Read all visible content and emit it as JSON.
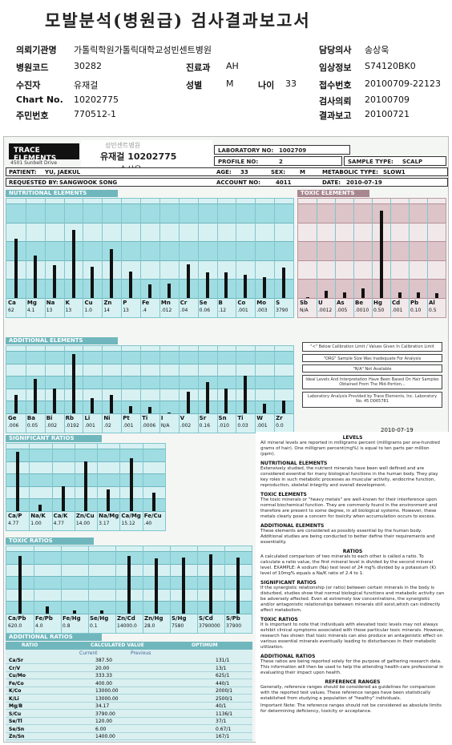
{
  "report_title": "모발분석(병원급) 검사결과보고서",
  "info": {
    "inst_label": "의뢰기관명",
    "inst": "가톨릭학원가톨릭대학교성빈센트병원",
    "doctor_label": "담당의사",
    "doctor": "송상욱",
    "code_label": "병원코드",
    "code": "30282",
    "dept_label": "진료과",
    "dept": "AH",
    "clinic_label": "임상정보",
    "clinic": "S74120BK0",
    "name_label": "수진자",
    "name": "유재걸",
    "sex_label": "성별",
    "sex": "M",
    "age_label": "나이",
    "age": "33",
    "rcpt_label": "접수번호",
    "rcpt": "20100709-22123",
    "chart_label": "Chart No.",
    "chart": "10202775",
    "req_label": "검사의뢰",
    "req": "20100709",
    "ssn_label": "주민번호",
    "ssn": "770512-1",
    "result_label": "결과보고",
    "result": "20100721"
  },
  "sheet": {
    "company": "TRACE ELEMENTS",
    "address": "4501 Sunbelt Drive",
    "stamp_top": "성빈센트병원",
    "stamp_name": "유재걸 10202775",
    "stamp_doc": "송상욱",
    "lab_no_label": "LABORATORY NO:",
    "lab_no": "1002709",
    "profile_label": "PROFILE NO:",
    "profile": "2",
    "sample_label": "SAMPLE TYPE:",
    "sample": "SCALP",
    "patient_label": "PATIENT:",
    "patient": "YU, JAEKUL",
    "age_label": "AGE:",
    "age": "33",
    "sex_label": "SEX:",
    "sex": "M",
    "meta_label": "METABOLIC TYPE:",
    "meta": "SLOW1",
    "req_label": "REQUESTED BY:",
    "req": "SANGWOOK SONG",
    "acct_label": "ACCOUNT NO:",
    "acct": "4011",
    "date_label": "DATE:",
    "date": "2010-07-19",
    "sec_nutri": "NUTRITIONAL ELEMENTS",
    "sec_toxic": "TOXIC ELEMENTS",
    "sec_add": "ADDITIONAL ELEMENTS",
    "sec_sig": "SIGNIFICANT RATIOS",
    "sec_toxr": "TOXIC RATIOS",
    "sec_addr": "ADDITIONAL RATIOS",
    "key1": "\"<\" Below Calibration Limit / Values Given In Calibration Limit",
    "key2": "\"ORG\" Sample Size Was Inadequate For Analysis",
    "key3": "\"N/A\" Not Available",
    "key4": "Ideal Levels And Interpretation Have Been Based On Hair Samples Obtained From The Mid-Portion...",
    "key5": "Laboratory Analysis Provided by Trace Elements, Inc. Laboratory No. 45 D065781",
    "date2": "2010-07-19"
  },
  "nutritional": {
    "labels": [
      "Ca",
      "Mg",
      "Na",
      "K",
      "Cu",
      "Zn",
      "P",
      "Fe",
      "Mn",
      "Cr",
      "Se",
      "B",
      "Co",
      "Mo",
      "S"
    ],
    "values": [
      "62",
      "4.1",
      "13",
      "13",
      "1.0",
      "14",
      "13",
      ".4",
      ".012",
      ".04",
      "0.06",
      ".12",
      ".001",
      ".003",
      "3790"
    ],
    "levels": [
      0.63,
      0.45,
      0.35,
      0.72,
      0.33,
      0.52,
      0.28,
      0.14,
      0.15,
      0.36,
      0.27,
      0.27,
      0.25,
      0.22,
      0.32
    ]
  },
  "toxic": {
    "labels": [
      "Sb",
      "U",
      "As",
      "Be",
      "Hg",
      "Cd",
      "Pb",
      "Al"
    ],
    "values": [
      "N/A",
      ".0012",
      ".005",
      ".0010",
      "0.50",
      ".001",
      "0.10",
      "0.5"
    ],
    "levels": [
      0.0,
      0.08,
      0.06,
      0.1,
      0.92,
      0.06,
      0.06,
      0.05
    ]
  },
  "additional": {
    "labels": [
      "Ge",
      "Ba",
      "Bi",
      "Rb",
      "Li",
      "Ni",
      "Pt",
      "Ti",
      "I",
      "V",
      "Sr",
      "Sn",
      "Ti",
      "W",
      "Zr"
    ],
    "values": [
      ".006",
      "0.05",
      ".002",
      ".0192",
      ".001",
      ".02",
      ".001",
      ".0006",
      "N/A",
      ".002",
      "0.16",
      ".010",
      "0.03",
      ".001",
      "0.0"
    ],
    "levels": [
      0.3,
      0.55,
      0.4,
      0.95,
      0.25,
      0.3,
      0.12,
      0.1,
      0,
      0.35,
      0.5,
      0.4,
      0.6,
      0.15,
      0.2
    ]
  },
  "significant": {
    "labels": [
      "Ca/P",
      "Na/K",
      "Ca/K",
      "Zn/Cu",
      "Na/Mg",
      "Ca/Mg",
      "Fe/Cu"
    ],
    "values": [
      "4.77",
      "1.00",
      "4.77",
      "14.00",
      "3.17",
      "15.12",
      ".40"
    ],
    "levels": [
      0.95,
      0.1,
      0.4,
      0.8,
      0.35,
      0.85,
      0.3
    ]
  },
  "toxic_ratios": {
    "labels": [
      "Ca/Pb",
      "Fe/Pb",
      "Fe/Hg",
      "Se/Hg",
      "Zn/Cd",
      "Zn/Hg",
      "S/Hg",
      "S/Cd",
      "S/Pb"
    ],
    "values": [
      "620.0",
      "4.0",
      "0.8",
      "0.1",
      "14000.0",
      "28.0",
      "7580",
      "3790000",
      "37900"
    ],
    "levels": [
      0.92,
      0.12,
      0.05,
      0.05,
      0.92,
      0.88,
      0.9,
      0.95,
      0.9
    ]
  },
  "add_ratios": {
    "h1": "RATIO",
    "h2": "CALCULATED VALUE",
    "h3": "OPTIMUM",
    "sub1": "Current",
    "sub2": "Previous",
    "rows": [
      [
        "Ca/Sr",
        "387.50",
        "131/1"
      ],
      [
        "Cr/V",
        "20.00",
        "13/1"
      ],
      [
        "Cu/Mo",
        "333.33",
        "625/1"
      ],
      [
        "Fe/Co",
        "400.00",
        "440/1"
      ],
      [
        "K/Co",
        "13000.00",
        "2000/1"
      ],
      [
        "K/Li",
        "13000.00",
        "2500/1"
      ],
      [
        "Mg/B",
        "34.17",
        "40/1"
      ],
      [
        "S/Cu",
        "3790.00",
        "1136/1"
      ],
      [
        "Se/Tl",
        "120.00",
        "37/1"
      ],
      [
        "Se/Sn",
        "6.00",
        "0.67/1"
      ],
      [
        "Zn/Sn",
        "1400.00",
        "167/1"
      ]
    ]
  },
  "legend": {
    "h_levels": "LEVELS",
    "p_levels": "All mineral levels are reported in milligrams percent (milligrams per one-hundred grams of hair). One milligram percent(mg%) is equal to ten parts per million (ppm).",
    "h_nut": "NUTRITIONAL ELEMENTS",
    "p_nut": "Extensively studied, the nutrient minerals have been well defined and are considered essential for many biological functions in the human body. They play key roles in such metabolic processes as muscular activity, endocrine function, reproduction, skeletal integrity and overall development.",
    "h_tox": "TOXIC ELEMENTS",
    "p_tox": "The toxic minerals or \"heavy metals\" are well-known for their interference upon normal biochemical function. They are commonly found in the environment and therefore are present to some degree, in all biological systems. However, these metals clearly pose a concern for toxicity when accumulation occurs to excess.",
    "h_add": "ADDITIONAL ELEMENTS",
    "p_add": "These elements are considered as possibly essential by the human body. Additional studies are being conducted to better define their requirements and essentiality.",
    "h_rat": "RATIOS",
    "p_rat": "A calculated comparison of two minerals to each other is called a ratio. To calculate a ratio value, the first mineral level is divided by the second mineral level. EXAMPLE: A sodium (Na) test level of 24 mg% divided by a potassium (K) level of 10mg% equals a Na/K ratio of 2.4 to 1.",
    "h_sig": "SIGNIFICANT RATIOS",
    "p_sig": "If the synergistic relationship (or ratio) between certain minerals in the body is disturbed, studies show that normal biological functions and metabolic activity can be adversely affected. Even at extremely low concentrations, the synergistic and/or antagonistic relationships between minerals still exist,which can indirectly affect metabolism.",
    "h_toxr": "TOXIC RATIOS",
    "p_toxr": "It is important to note that individuals with elevated toxic levels may not always exhibit clinical symptoms associated with those particular toxic minerals. However, research has shown that toxic minerals can also produce an antagonistic effect on various essential minerals eventually leading to disturbances in their metabolic utilization.",
    "h_addr": "ADDITIONAL RATIOS",
    "p_addr": "These ratios are being reported solely for the purpose of gathering research data. This information will then be used to help the attending health-care professional in evaluating their impact upon health.",
    "h_ref": "REFERENCE RANGES",
    "p_ref": "Generally, reference ranges should be considered as guidelines for comparison with the reported test values. These reference ranges have been statistically established from studying a population of \"healthy\" individuals.",
    "p_note": "Important Note: The reference ranges should not be considered as absolute limits for determining deficiency, toxicity or acceptance."
  }
}
